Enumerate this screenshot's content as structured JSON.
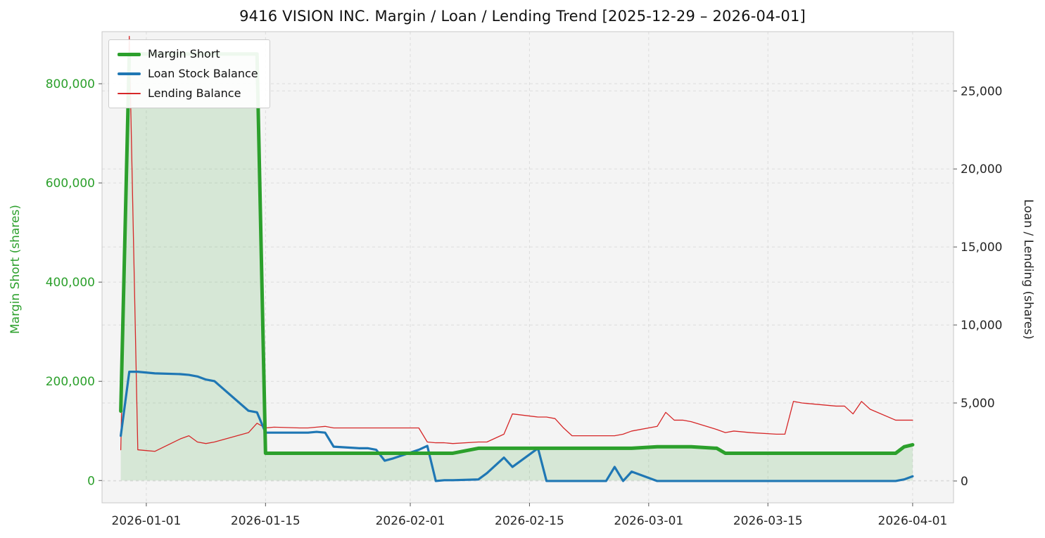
{
  "title": "9416 VISION INC. Margin / Loan / Lending Trend [2025-12-29 – 2026-04-01]",
  "axes": {
    "left": {
      "label": "Margin Short (shares)",
      "color": "#2ca02c",
      "ticks": [
        {
          "value": 0,
          "label": "0"
        },
        {
          "value": 200000,
          "label": "200,000"
        },
        {
          "value": 400000,
          "label": "400,000"
        },
        {
          "value": 600000,
          "label": "600,000"
        },
        {
          "value": 800000,
          "label": "800,000"
        }
      ]
    },
    "right": {
      "label": "Loan / Lending (shares)",
      "color": "#262626",
      "ticks": [
        {
          "value": 0,
          "label": "0"
        },
        {
          "value": 5000,
          "label": "5,000"
        },
        {
          "value": 10000,
          "label": "10,000"
        },
        {
          "value": 15000,
          "label": "15,000"
        },
        {
          "value": 20000,
          "label": "20,000"
        },
        {
          "value": 25000,
          "label": "25,000"
        }
      ]
    },
    "x": {
      "ticks": [
        {
          "date": "2026-01-01",
          "label": "2026-01-01"
        },
        {
          "date": "2026-01-15",
          "label": "2026-01-15"
        },
        {
          "date": "2026-02-01",
          "label": "2026-02-01"
        },
        {
          "date": "2026-02-15",
          "label": "2026-02-15"
        },
        {
          "date": "2026-03-01",
          "label": "2026-03-01"
        },
        {
          "date": "2026-03-15",
          "label": "2026-03-15"
        },
        {
          "date": "2026-04-01",
          "label": "2026-04-01"
        }
      ]
    }
  },
  "chart_data": {
    "type": "line",
    "title": "9416 VISION INC. Margin / Loan / Lending Trend [2025-12-29 – 2026-04-01]",
    "xlabel": "",
    "ylabel_left": "Margin Short (shares)",
    "ylabel_right": "Loan / Lending (shares)",
    "left_ylim": [
      -45000,
      905000
    ],
    "right_ylim": [
      -1400,
      28800
    ],
    "grid": true,
    "legend_position": "upper left",
    "x": [
      "2025-12-29",
      "2025-12-30",
      "2025-12-31",
      "2026-01-01",
      "2026-01-02",
      "2026-01-05",
      "2026-01-06",
      "2026-01-07",
      "2026-01-08",
      "2026-01-09",
      "2026-01-13",
      "2026-01-14",
      "2026-01-15",
      "2026-01-16",
      "2026-01-19",
      "2026-01-20",
      "2026-01-21",
      "2026-01-22",
      "2026-01-23",
      "2026-01-26",
      "2026-01-27",
      "2026-01-28",
      "2026-01-29",
      "2026-01-30",
      "2026-02-02",
      "2026-02-03",
      "2026-02-04",
      "2026-02-05",
      "2026-02-06",
      "2026-02-09",
      "2026-02-10",
      "2026-02-12",
      "2026-02-13",
      "2026-02-16",
      "2026-02-17",
      "2026-02-18",
      "2026-02-19",
      "2026-02-20",
      "2026-02-24",
      "2026-02-25",
      "2026-02-26",
      "2026-02-27",
      "2026-03-02",
      "2026-03-03",
      "2026-03-04",
      "2026-03-05",
      "2026-03-06",
      "2026-03-09",
      "2026-03-10",
      "2026-03-11",
      "2026-03-12",
      "2026-03-13",
      "2026-03-16",
      "2026-03-17",
      "2026-03-18",
      "2026-03-19",
      "2026-03-23",
      "2026-03-24",
      "2026-03-25",
      "2026-03-26",
      "2026-03-27",
      "2026-03-30",
      "2026-03-31",
      "2026-04-01"
    ],
    "series": [
      {
        "name": "Margin Short",
        "axis": "left",
        "color": "#2ca02c",
        "line_width": 5,
        "fill": true,
        "fill_color": "rgba(44,160,44,0.15)",
        "values": [
          140000,
          860000,
          860000,
          860000,
          860000,
          860000,
          860000,
          860000,
          860000,
          860000,
          860000,
          860000,
          55000,
          55000,
          55000,
          55000,
          55000,
          55000,
          55000,
          55000,
          55000,
          55000,
          55000,
          55000,
          55000,
          55000,
          55000,
          55000,
          55000,
          65000,
          65000,
          65000,
          65000,
          65000,
          65000,
          65000,
          65000,
          65000,
          65000,
          65000,
          65000,
          65000,
          68000,
          68000,
          68000,
          68000,
          68000,
          65000,
          55000,
          55000,
          55000,
          55000,
          55000,
          55000,
          55000,
          55000,
          55000,
          55000,
          55000,
          55000,
          55000,
          55000,
          68000,
          72000
        ]
      },
      {
        "name": "Loan Stock Balance",
        "axis": "right",
        "color": "#1f77b4",
        "line_width": 3.2,
        "fill": false,
        "values": [
          2900,
          7000,
          7000,
          6950,
          6900,
          6850,
          6800,
          6700,
          6500,
          6400,
          4500,
          4400,
          3100,
          3100,
          3100,
          3100,
          3150,
          3100,
          2200,
          2100,
          2100,
          2000,
          1300,
          1450,
          2000,
          2250,
          0,
          50,
          50,
          100,
          500,
          1500,
          900,
          2100,
          0,
          0,
          0,
          0,
          0,
          900,
          0,
          600,
          0,
          0,
          0,
          0,
          0,
          0,
          0,
          0,
          0,
          0,
          0,
          0,
          0,
          0,
          0,
          0,
          0,
          0,
          0,
          0,
          100,
          300
        ]
      },
      {
        "name": "Lending Balance",
        "axis": "right",
        "color": "#d62728",
        "line_width": 1.3,
        "fill": false,
        "values": [
          2000,
          28500,
          2000,
          1950,
          1900,
          2700,
          2900,
          2500,
          2400,
          2500,
          3100,
          3700,
          3400,
          3450,
          3400,
          3400,
          3450,
          3500,
          3400,
          3400,
          3400,
          3400,
          3400,
          3400,
          3400,
          2500,
          2450,
          2450,
          2400,
          2500,
          2500,
          3000,
          4300,
          4100,
          4100,
          4000,
          3400,
          2900,
          2900,
          2900,
          3000,
          3200,
          3500,
          4400,
          3900,
          3900,
          3800,
          3300,
          3100,
          3200,
          3150,
          3100,
          3000,
          3000,
          5100,
          5000,
          4800,
          4800,
          4300,
          5100,
          4600,
          3900,
          3900,
          3900
        ]
      }
    ]
  }
}
